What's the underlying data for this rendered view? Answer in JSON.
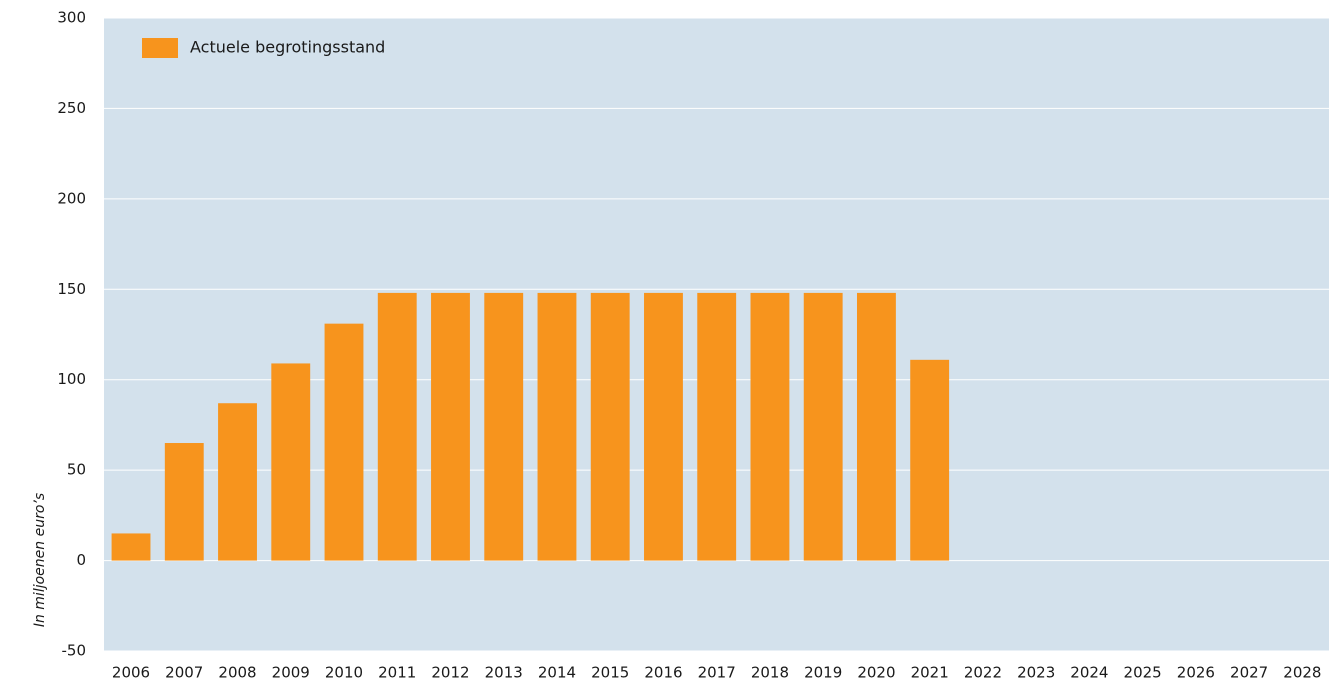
{
  "chart_data": {
    "type": "bar",
    "categories": [
      "2006",
      "2007",
      "2008",
      "2009",
      "2010",
      "2011",
      "2012",
      "2013",
      "2014",
      "2015",
      "2016",
      "2017",
      "2018",
      "2019",
      "2020",
      "2021",
      "2022",
      "2023",
      "2024",
      "2025",
      "2026",
      "2027",
      "2028"
    ],
    "series": [
      {
        "name": "Actuele begrotingsstand",
        "color": "#f7941d",
        "values": [
          15,
          65,
          87,
          109,
          131,
          148,
          148,
          148,
          148,
          148,
          148,
          148,
          148,
          148,
          148,
          111,
          null,
          null,
          null,
          null,
          null,
          null,
          null
        ]
      }
    ],
    "ylabel": "In miljoenen euro’s",
    "ylim": [
      -50,
      300
    ],
    "yticks": [
      -50,
      0,
      50,
      100,
      150,
      200,
      250,
      300
    ],
    "grid": true,
    "legend": "upper left"
  }
}
